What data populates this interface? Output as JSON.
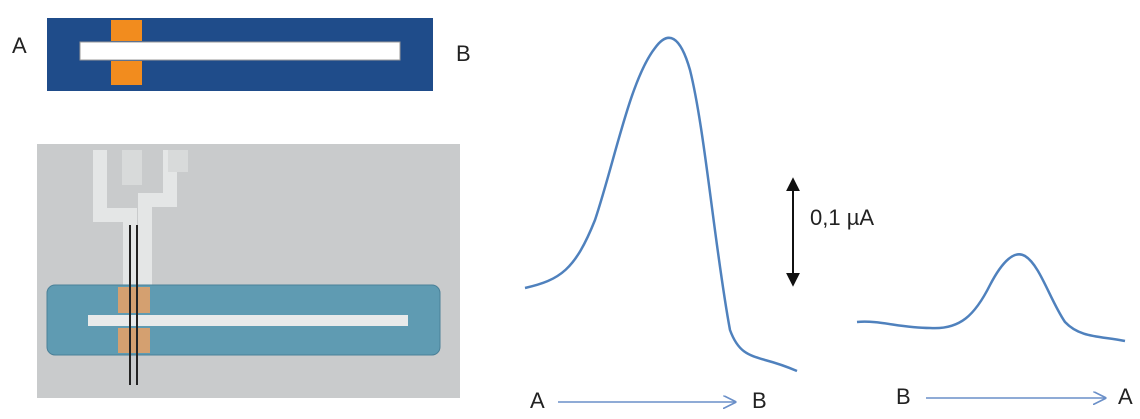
{
  "schematic": {
    "left_label": "A",
    "right_label": "B"
  },
  "scale_bar": {
    "label": "0,1 µA"
  },
  "trace_forward": {
    "start_label": "A",
    "end_label": "B"
  },
  "trace_reverse": {
    "start_label": "B",
    "end_label": "A"
  }
}
